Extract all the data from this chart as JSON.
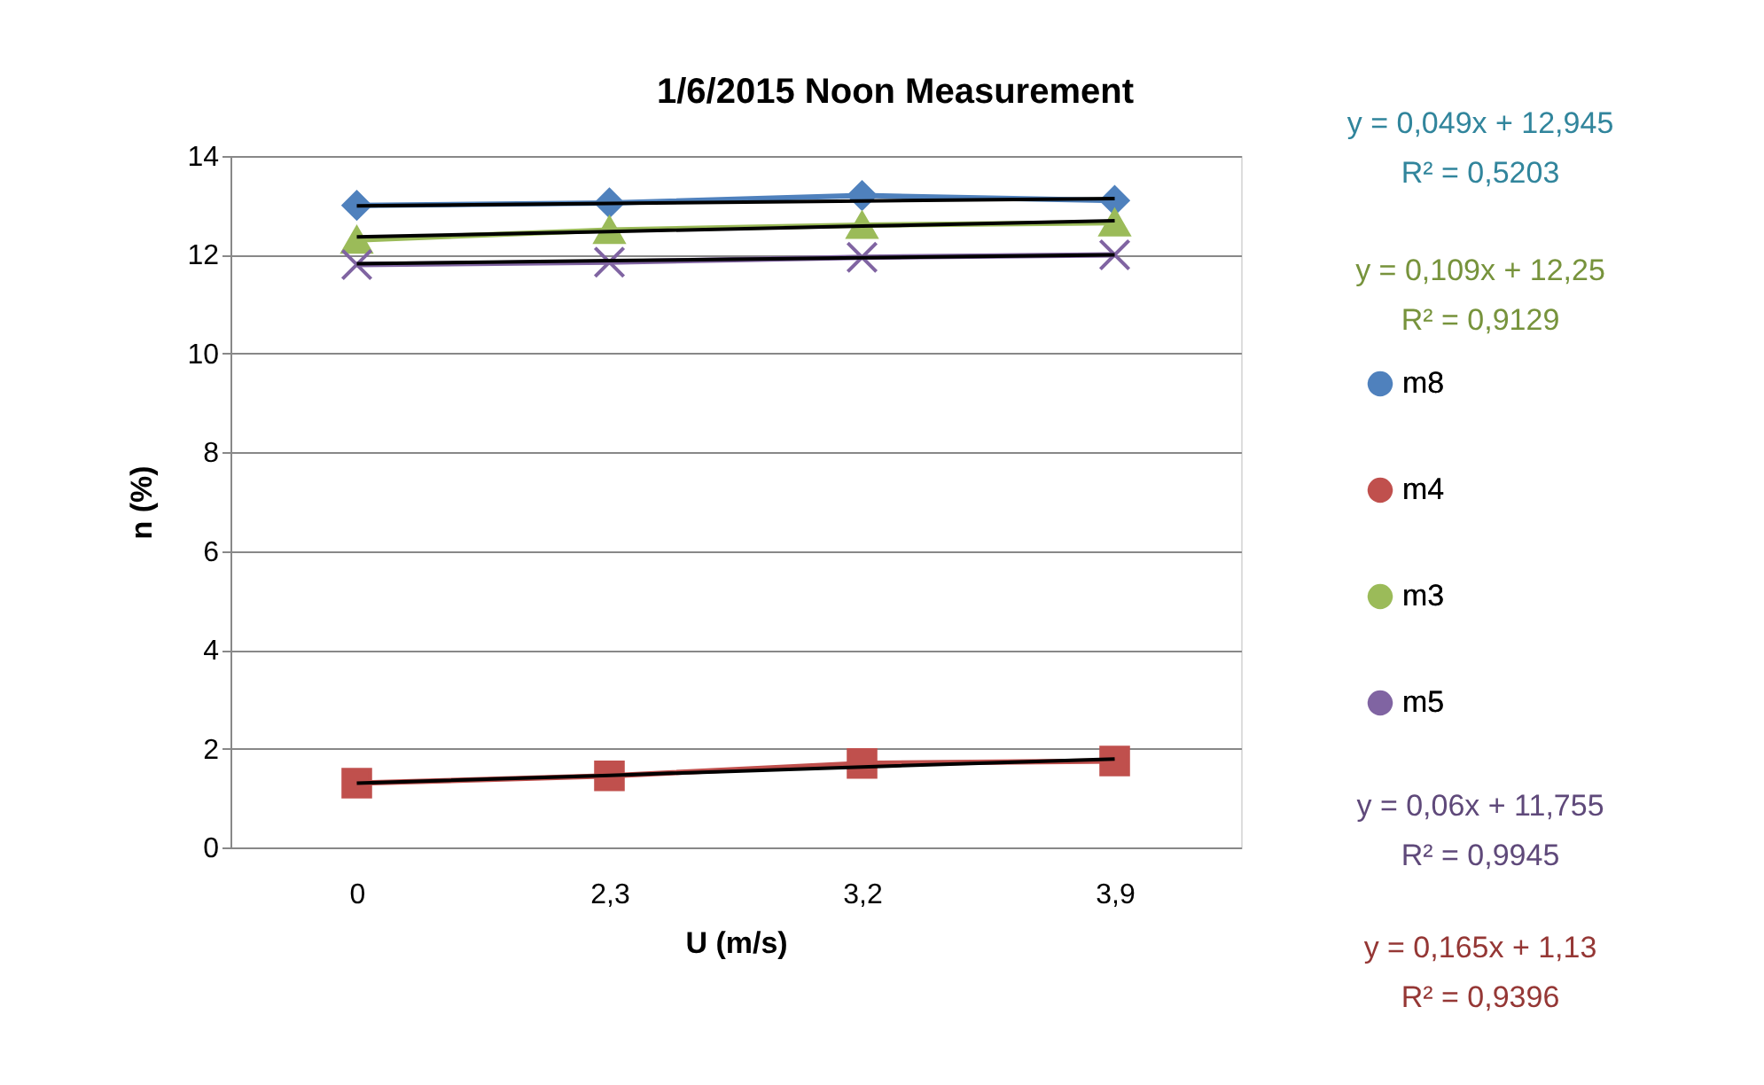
{
  "chart_data": {
    "type": "line",
    "title": "1/6/2015 Noon Measurement",
    "xlabel": "U (m/s)",
    "ylabel": "n (%)",
    "categories": [
      "0",
      "2,3",
      "3,2",
      "3,9"
    ],
    "ylim": [
      0,
      14
    ],
    "yticks": [
      0,
      2,
      4,
      6,
      8,
      10,
      12,
      14
    ],
    "grid": "y",
    "legend": "right",
    "series": [
      {
        "name": "m8",
        "color": "#4f81bd",
        "marker": "diamond",
        "values": [
          13.0,
          13.05,
          13.2,
          13.1
        ]
      },
      {
        "name": "m4",
        "color": "#c0504d",
        "marker": "square",
        "values": [
          1.3,
          1.45,
          1.7,
          1.75
        ]
      },
      {
        "name": "m3",
        "color": "#9bbb59",
        "marker": "triangle",
        "values": [
          12.3,
          12.5,
          12.6,
          12.65
        ]
      },
      {
        "name": "m5",
        "color": "#8064a2",
        "marker": "cross",
        "values": [
          11.8,
          11.85,
          11.95,
          12.0
        ]
      },
      {
        "type": "line",
        "color": "#000000",
        "marker": "none",
        "values": [
          12.99,
          13.04,
          13.09,
          13.14
        ]
      },
      {
        "type": "line",
        "color": "#000000",
        "marker": "none",
        "values": [
          12.36,
          12.47,
          12.58,
          12.69
        ]
      },
      {
        "type": "line",
        "color": "#000000",
        "marker": "none",
        "values": [
          11.82,
          11.88,
          11.94,
          12.0
        ]
      },
      {
        "type": "line",
        "color": "#000000",
        "marker": "none",
        "values": [
          1.3,
          1.46,
          1.63,
          1.79
        ]
      }
    ],
    "annotations": [
      "y = 0,049x + 12,945",
      "R² = 0,5203",
      "y = 0,109x + 12,25",
      "R² = 0,9129",
      "y = 0,06x + 11,755",
      "R² = 0,9945",
      "y = 0,165x + 1,13",
      "R² = 0,9396"
    ]
  }
}
